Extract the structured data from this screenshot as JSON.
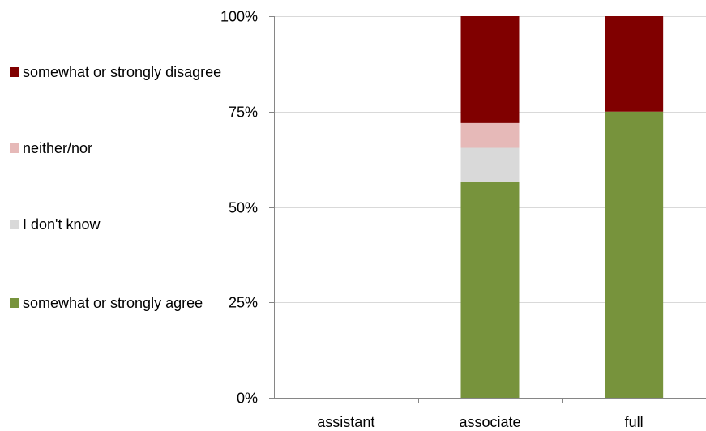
{
  "chart_data": {
    "type": "bar",
    "stacked": true,
    "normalized": true,
    "categories": [
      "assistant",
      "associate",
      "full"
    ],
    "series": [
      {
        "name": "somewhat or strongly agree",
        "color": "#77933c",
        "values": [
          0,
          56.5,
          75
        ]
      },
      {
        "name": "I don't know",
        "color": "#d9d9d9",
        "values": [
          0,
          9,
          0
        ]
      },
      {
        "name": "neither/nor",
        "color": "#e6b9b8",
        "values": [
          0,
          6.5,
          0
        ]
      },
      {
        "name": "somewhat or strongly disagree",
        "color": "#800000",
        "values": [
          0,
          28,
          25
        ]
      }
    ],
    "y_ticks": [
      "0%",
      "25%",
      "50%",
      "75%",
      "100%"
    ],
    "ylim": [
      0,
      100
    ],
    "grid": true,
    "legend_position": "left"
  }
}
